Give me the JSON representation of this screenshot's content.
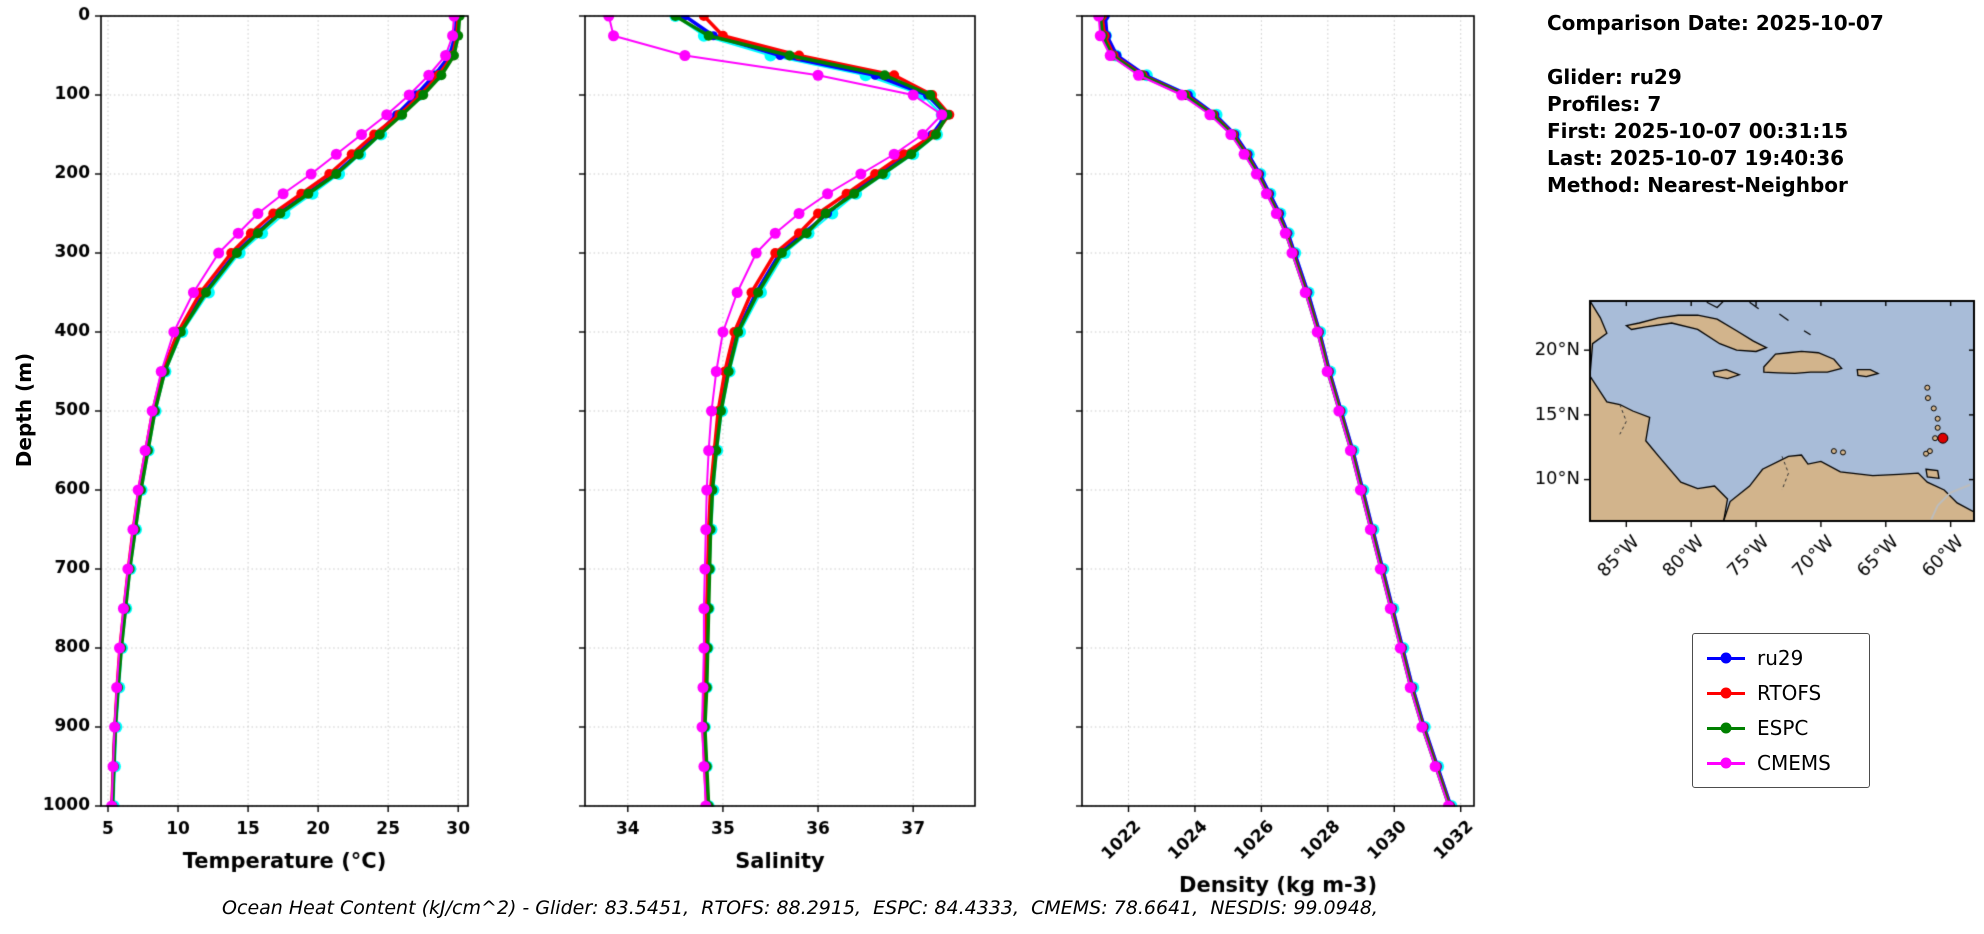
{
  "info_panel": {
    "lines": [
      "Comparison Date: 2025-10-07",
      "",
      "Glider: ru29",
      "Profiles: 7",
      "First: 2025-10-07 00:31:15",
      "Last: 2025-10-07 19:40:36",
      "Method: Nearest-Neighbor"
    ]
  },
  "ylabel": "Depth (m)",
  "footer": {
    "text": "Ocean Heat Content (kJ/cm^2) - Glider: 83.5451,  RTOFS: 88.2915,  ESPC: 84.4333,  CMEMS: 78.6641,  NESDIS: 99.0948,"
  },
  "legend": {
    "items": [
      {
        "label": "ru29",
        "color": "#0000ff"
      },
      {
        "label": "RTOFS",
        "color": "#ff0000"
      },
      {
        "label": "ESPC",
        "color": "#008000"
      },
      {
        "label": "CMEMS",
        "color": "#ff00ff"
      }
    ]
  },
  "chart_data": [
    {
      "type": "line",
      "xlabel": "Temperature (°C)",
      "xlim": [
        4.5,
        30.7
      ],
      "x_ticks": [
        5,
        10,
        15,
        20,
        25,
        30
      ],
      "x_tick_rotation": 0,
      "ylim": [
        0,
        1000
      ],
      "y_ticks": [
        0,
        100,
        200,
        300,
        400,
        500,
        600,
        700,
        800,
        900,
        1000
      ],
      "depths": [
        0,
        25,
        50,
        75,
        100,
        125,
        150,
        175,
        200,
        225,
        250,
        275,
        300,
        350,
        400,
        450,
        500,
        550,
        600,
        650,
        700,
        750,
        800,
        850,
        900,
        950,
        1000
      ],
      "series": [
        {
          "name": "ru29 profiles",
          "color": "#00ffff",
          "line_width": 2,
          "marker_size": 6,
          "values": [
            29.8,
            29.7,
            29.3,
            28.5,
            27.2,
            25.9,
            24.5,
            23.0,
            21.5,
            19.6,
            17.6,
            16.0,
            14.4,
            12.2,
            10.3,
            9.1,
            8.4,
            7.9,
            7.4,
            7.0,
            6.6,
            6.3,
            6.0,
            5.8,
            5.6,
            5.5,
            5.4
          ]
        },
        {
          "name": "ru29",
          "color": "#0000ff",
          "line_width": 3.5,
          "marker_size": 4.5,
          "values": [
            29.9,
            29.8,
            29.4,
            28.3,
            27.0,
            25.6,
            24.2,
            22.8,
            21.2,
            19.2,
            17.2,
            15.6,
            14.1,
            11.9,
            10.1,
            9.0,
            8.3,
            7.8,
            7.3,
            6.9,
            6.5,
            6.2,
            5.9,
            5.7,
            5.5,
            5.4,
            5.3
          ]
        },
        {
          "name": "RTOFS",
          "color": "#ff0000",
          "line_width": 3.5,
          "marker_size": 5,
          "values": [
            30.0,
            29.9,
            29.6,
            28.6,
            27.3,
            25.8,
            24.0,
            22.4,
            20.8,
            18.8,
            16.8,
            15.2,
            13.8,
            11.6,
            10.0,
            8.9,
            8.2,
            7.7,
            7.2,
            6.8,
            6.45,
            6.15,
            5.85,
            5.65,
            5.5,
            5.38,
            5.28
          ]
        },
        {
          "name": "ESPC",
          "color": "#008000",
          "line_width": 3.5,
          "marker_size": 5,
          "values": [
            30.1,
            30.0,
            29.7,
            28.8,
            27.5,
            26.0,
            24.4,
            22.9,
            21.3,
            19.3,
            17.3,
            15.7,
            14.2,
            12.0,
            10.2,
            9.05,
            8.35,
            7.85,
            7.35,
            6.95,
            6.55,
            6.25,
            5.95,
            5.72,
            5.52,
            5.42,
            5.32
          ]
        },
        {
          "name": "CMEMS",
          "color": "#ff00ff",
          "line_width": 2,
          "marker_size": 5.5,
          "values": [
            29.7,
            29.6,
            29.1,
            27.9,
            26.5,
            24.9,
            23.1,
            21.3,
            19.5,
            17.5,
            15.7,
            14.3,
            12.9,
            11.1,
            9.7,
            8.8,
            8.15,
            7.65,
            7.15,
            6.78,
            6.42,
            6.1,
            5.82,
            5.62,
            5.47,
            5.36,
            5.26
          ]
        }
      ]
    },
    {
      "type": "line",
      "xlabel": "Salinity",
      "xlim": [
        33.55,
        37.65
      ],
      "x_ticks": [
        34,
        35,
        36,
        37
      ],
      "x_tick_rotation": 0,
      "ylim": [
        0,
        1000
      ],
      "y_ticks": [
        0,
        100,
        200,
        300,
        400,
        500,
        600,
        700,
        800,
        900,
        1000
      ],
      "depths": [
        0,
        25,
        50,
        75,
        100,
        125,
        150,
        175,
        200,
        225,
        250,
        275,
        300,
        350,
        400,
        450,
        500,
        550,
        600,
        650,
        700,
        750,
        800,
        850,
        900,
        950,
        1000
      ],
      "series": [
        {
          "name": "ru29 profiles",
          "color": "#00ffff",
          "line_width": 2,
          "marker_size": 6,
          "values": [
            34.5,
            34.8,
            35.5,
            36.5,
            37.1,
            37.3,
            37.25,
            37.0,
            36.7,
            36.4,
            36.15,
            35.9,
            35.65,
            35.4,
            35.18,
            35.07,
            34.99,
            34.94,
            34.9,
            34.88,
            34.86,
            34.85,
            34.84,
            34.83,
            34.81,
            34.83,
            34.85
          ]
        },
        {
          "name": "ru29",
          "color": "#0000ff",
          "line_width": 3.5,
          "marker_size": 4.5,
          "values": [
            34.6,
            34.9,
            35.6,
            36.6,
            37.15,
            37.35,
            37.2,
            36.95,
            36.65,
            36.35,
            36.1,
            35.85,
            35.6,
            35.35,
            35.15,
            35.05,
            34.97,
            34.92,
            34.88,
            34.86,
            34.85,
            34.84,
            34.83,
            34.82,
            34.8,
            34.82,
            34.84
          ]
        },
        {
          "name": "RTOFS",
          "color": "#ff0000",
          "line_width": 3.5,
          "marker_size": 5,
          "values": [
            34.8,
            35.0,
            35.8,
            36.8,
            37.2,
            37.38,
            37.22,
            36.9,
            36.6,
            36.3,
            36.0,
            35.8,
            35.55,
            35.3,
            35.12,
            35.02,
            34.95,
            34.91,
            34.87,
            34.85,
            34.84,
            34.83,
            34.82,
            34.81,
            34.79,
            34.81,
            34.83
          ]
        },
        {
          "name": "ESPC",
          "color": "#008000",
          "line_width": 3.5,
          "marker_size": 5,
          "values": [
            34.5,
            34.85,
            35.7,
            36.7,
            37.18,
            37.36,
            37.24,
            36.98,
            36.68,
            36.38,
            36.08,
            35.88,
            35.62,
            35.37,
            35.16,
            35.06,
            34.98,
            34.93,
            34.89,
            34.87,
            34.86,
            34.85,
            34.84,
            34.83,
            34.81,
            34.83,
            34.85
          ]
        },
        {
          "name": "CMEMS",
          "color": "#ff00ff",
          "line_width": 2,
          "marker_size": 5.5,
          "values": [
            33.8,
            33.85,
            34.6,
            36.0,
            37.0,
            37.3,
            37.1,
            36.8,
            36.45,
            36.1,
            35.8,
            35.55,
            35.35,
            35.15,
            35.0,
            34.93,
            34.88,
            34.85,
            34.83,
            34.82,
            34.81,
            34.8,
            34.8,
            34.79,
            34.78,
            34.8,
            34.82
          ]
        }
      ]
    },
    {
      "type": "line",
      "xlabel": "Density (kg m-3)",
      "xlim": [
        1020.6,
        1032.4
      ],
      "x_ticks": [
        1022,
        1024,
        1026,
        1028,
        1030,
        1032
      ],
      "x_tick_rotation": 45,
      "ylim": [
        0,
        1000
      ],
      "y_ticks": [
        0,
        100,
        200,
        300,
        400,
        500,
        600,
        700,
        800,
        900,
        1000
      ],
      "depths": [
        0,
        25,
        50,
        75,
        100,
        125,
        150,
        175,
        200,
        225,
        250,
        275,
        300,
        350,
        400,
        450,
        500,
        550,
        600,
        650,
        700,
        750,
        800,
        850,
        900,
        950,
        1000
      ],
      "series": [
        {
          "name": "ru29 profiles",
          "color": "#00ffff",
          "line_width": 2,
          "marker_size": 6,
          "values": [
            1021.25,
            1021.32,
            1021.62,
            1022.55,
            1023.85,
            1024.65,
            1025.22,
            1025.62,
            1025.97,
            1026.27,
            1026.57,
            1026.82,
            1027.02,
            1027.42,
            1027.77,
            1028.07,
            1028.42,
            1028.77,
            1029.07,
            1029.37,
            1029.67,
            1029.97,
            1030.27,
            1030.57,
            1030.92,
            1031.32,
            1031.72
          ]
        },
        {
          "name": "ru29",
          "color": "#0000ff",
          "line_width": 3.5,
          "marker_size": 4.5,
          "values": [
            1021.3,
            1021.35,
            1021.65,
            1022.5,
            1023.8,
            1024.6,
            1025.2,
            1025.6,
            1025.95,
            1026.25,
            1026.55,
            1026.8,
            1027.0,
            1027.4,
            1027.75,
            1028.05,
            1028.4,
            1028.75,
            1029.05,
            1029.35,
            1029.65,
            1029.95,
            1030.25,
            1030.55,
            1030.9,
            1031.3,
            1031.7
          ]
        },
        {
          "name": "RTOFS",
          "color": "#ff0000",
          "line_width": 3.5,
          "marker_size": 5,
          "values": [
            1021.2,
            1021.28,
            1021.55,
            1022.42,
            1023.72,
            1024.55,
            1025.15,
            1025.55,
            1025.9,
            1026.2,
            1026.5,
            1026.76,
            1026.96,
            1027.36,
            1027.72,
            1028.02,
            1028.37,
            1028.72,
            1029.02,
            1029.32,
            1029.62,
            1029.92,
            1030.22,
            1030.52,
            1030.87,
            1031.27,
            1031.67
          ]
        },
        {
          "name": "ESPC",
          "color": "#008000",
          "line_width": 3.5,
          "marker_size": 5,
          "values": [
            1021.15,
            1021.22,
            1021.5,
            1022.38,
            1023.68,
            1024.52,
            1025.12,
            1025.52,
            1025.88,
            1026.18,
            1026.48,
            1026.74,
            1026.94,
            1027.34,
            1027.7,
            1028.0,
            1028.35,
            1028.7,
            1029.0,
            1029.3,
            1029.6,
            1029.9,
            1030.2,
            1030.5,
            1030.85,
            1031.25,
            1031.65
          ]
        },
        {
          "name": "CMEMS",
          "color": "#ff00ff",
          "line_width": 2,
          "marker_size": 5.5,
          "values": [
            1021.1,
            1021.15,
            1021.45,
            1022.3,
            1023.6,
            1024.45,
            1025.08,
            1025.48,
            1025.85,
            1026.15,
            1026.45,
            1026.72,
            1026.92,
            1027.32,
            1027.68,
            1027.98,
            1028.33,
            1028.68,
            1028.98,
            1029.28,
            1029.58,
            1029.88,
            1030.18,
            1030.48,
            1030.83,
            1031.23,
            1031.63
          ]
        }
      ]
    }
  ],
  "map": {
    "x_tick_labels": [
      "85°W",
      "80°W",
      "75°W",
      "70°W",
      "65°W",
      "60°W"
    ],
    "x_tick_lons": [
      -85,
      -80,
      -75,
      -70,
      -65,
      -60
    ],
    "y_tick_labels": [
      "10°N",
      "15°N",
      "20°N"
    ],
    "y_tick_lats": [
      10,
      15,
      20
    ],
    "lon_range": [
      -87.8,
      -58.2
    ],
    "lat_range": [
      6.8,
      23.8
    ],
    "ocean_color": "#a8bcd8",
    "land_color": "#d2b48c",
    "marker": {
      "lon": -60.6,
      "lat": 13.2,
      "color": "#dd0000"
    }
  }
}
